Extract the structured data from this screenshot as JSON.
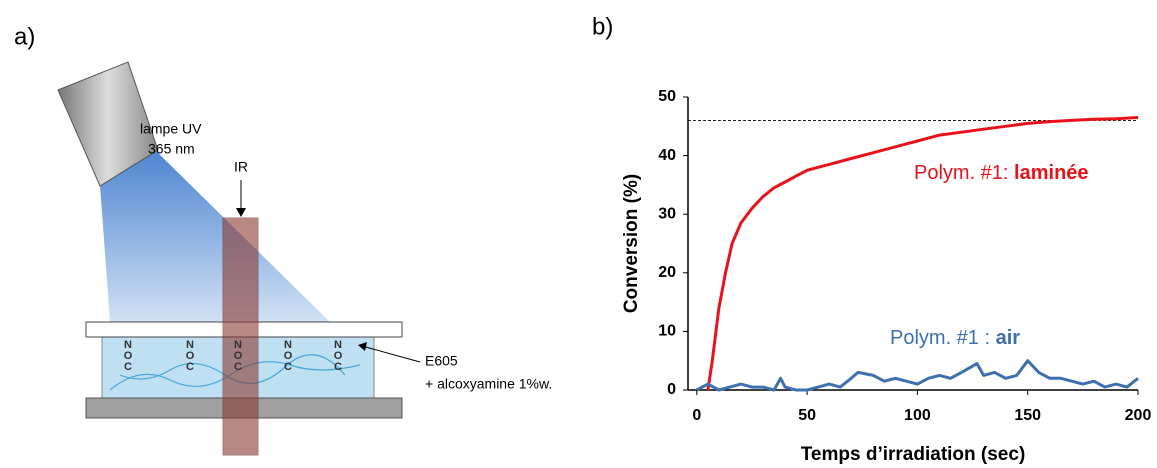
{
  "panel_labels": [
    "a)",
    "b)"
  ],
  "diagram": {
    "lamp_label": "lampe UV",
    "lamp_wavelength": "365 nm",
    "ir_label": "IR",
    "sample_label": "E605",
    "sample_additive": "+ alcoxyamine 1%w.",
    "molecules": [
      [
        "N",
        "O",
        "C"
      ],
      [
        "N",
        "O",
        "C"
      ],
      [
        "N",
        "O",
        "C"
      ],
      [
        "N",
        "O",
        "C"
      ],
      [
        "N",
        "O",
        "C"
      ]
    ]
  },
  "chart_data": {
    "type": "line",
    "ylabel": "Conversion (%)",
    "xlabel": "Temps d’irradiation (sec)",
    "xlim": [
      -4,
      200
    ],
    "xticks": [
      0,
      50,
      100,
      150,
      200
    ],
    "ylim": [
      0,
      50
    ],
    "yticks": [
      0,
      10,
      20,
      30,
      40,
      50
    ],
    "reference_line": 46,
    "series": [
      {
        "name": "Polym. #1: laminée",
        "name_parts": [
          "Polym. #1: ",
          "laminée"
        ],
        "color": "#e8121b",
        "x": [
          5,
          7,
          10,
          13,
          16,
          20,
          25,
          30,
          35,
          40,
          45,
          50,
          55,
          60,
          70,
          80,
          90,
          100,
          110,
          120,
          130,
          140,
          150,
          160,
          170,
          180,
          190,
          200
        ],
        "values": [
          0,
          5,
          14,
          20,
          25,
          28.5,
          31,
          33,
          34.5,
          35.5,
          36.5,
          37.5,
          38,
          38.5,
          39.5,
          40.5,
          41.5,
          42.5,
          43.5,
          44,
          44.5,
          45,
          45.5,
          45.8,
          46,
          46.2,
          46.3,
          46.5
        ]
      },
      {
        "name": "Polym. #1 : air",
        "name_parts": [
          "Polym. #1 : ",
          "air"
        ],
        "color": "#3e6fae",
        "x": [
          0,
          5,
          10,
          15,
          20,
          25,
          30,
          35,
          38,
          40,
          45,
          50,
          55,
          60,
          65,
          70,
          73,
          80,
          85,
          90,
          95,
          100,
          105,
          110,
          115,
          120,
          127,
          130,
          135,
          140,
          145,
          150,
          155,
          160,
          165,
          170,
          175,
          180,
          185,
          190,
          195,
          200
        ],
        "values": [
          0,
          1,
          0,
          0.5,
          1,
          0.5,
          0.5,
          0,
          2,
          0.5,
          0,
          0,
          0.5,
          1,
          0.5,
          2,
          3,
          2.5,
          1.5,
          2,
          1.5,
          1,
          2,
          2.5,
          2,
          3,
          4.5,
          2.5,
          3,
          2,
          2.5,
          5,
          3,
          2,
          2,
          1.5,
          1,
          1.5,
          0.5,
          1,
          0.5,
          2
        ]
      }
    ]
  }
}
